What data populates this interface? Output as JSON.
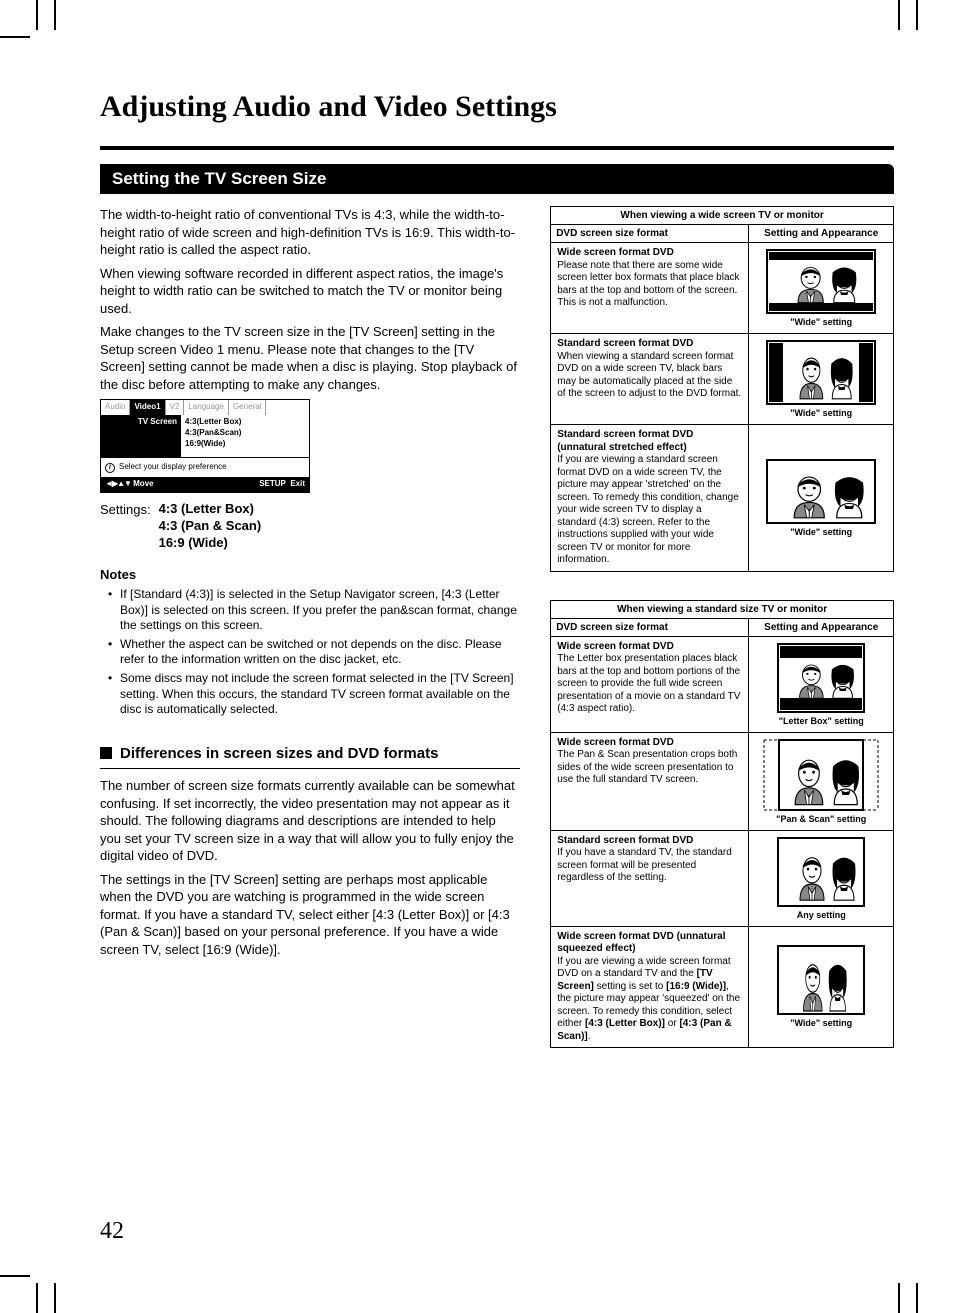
{
  "page_number": "42",
  "title": "Adjusting Audio and Video Settings",
  "section_heading": "Setting the TV Screen Size",
  "intro_p1": "The width-to-height ratio of conventional TVs is 4:3, while the width-to-height ratio of wide screen and high-definition TVs is 16:9. This width-to-height ratio is called the aspect ratio.",
  "intro_p2": "When viewing software recorded in different aspect ratios, the image's height to width ratio can be switched to match the TV or monitor being used.",
  "intro_p3": "Make changes to the TV screen size in the [TV Screen] setting in the Setup screen Video 1 menu. Please note that changes to the [TV Screen] setting cannot be made when a disc is playing. Stop playback of the disc before attempting to make any changes.",
  "menu": {
    "tabs": [
      "Audio",
      "Video1",
      "V2",
      "Language",
      "General"
    ],
    "active_tab_index": 1,
    "setting_label": "TV Screen",
    "options": [
      "4:3(Letter Box)",
      "4:3(Pan&Scan)",
      "16:9(Wide)"
    ],
    "info_text": "Select your display preference",
    "footer_move": "Move",
    "footer_setup": "SETUP",
    "footer_exit": "Exit"
  },
  "settings_label": "Settings:",
  "settings_values": [
    "4:3 (Letter Box)",
    "4:3 (Pan & Scan)",
    "16:9 (Wide)"
  ],
  "notes_heading": "Notes",
  "notes": [
    "If [Standard (4:3)] is selected in the Setup Navigator screen, [4:3 (Letter Box)] is selected on this screen. If you prefer the pan&scan format, change the settings on this screen.",
    "Whether the aspect can be switched or not depends on the disc. Please refer to the information written on the disc jacket, etc.",
    "Some discs may not include the screen format selected in the [TV Screen] setting. When this occurs, the standard TV screen format available on the disc is automatically selected."
  ],
  "subsection_heading": "Differences in screen sizes and DVD formats",
  "sub_p1": "The number of screen size formats currently available can be somewhat confusing. If set incorrectly, the video presentation may not appear as it should. The following diagrams and descriptions are intended to help you set your TV screen size in a way that will allow you to fully enjoy the digital video of DVD.",
  "sub_p2": "The settings in the [TV Screen] setting are perhaps most applicable when the DVD you are watching  is programmed in the wide screen format. If you have a standard TV, select either [4:3 (Letter Box)] or [4:3 (Pan & Scan)] based on your personal preference. If you have a wide screen TV, select [16:9 (Wide)].",
  "table1": {
    "caption": "When viewing a wide screen TV or monitor",
    "head_left": "DVD screen size format",
    "head_right": "Setting and Appearance",
    "rows": [
      {
        "title": "Wide screen format DVD",
        "desc": "Please note that there are some wide screen letter box formats that place black bars at the top and bottom of the screen. This is not a malfunction.",
        "setting": "\"Wide\" setting",
        "mode": "wide-letterbox"
      },
      {
        "title": "Standard screen format DVD",
        "desc": "When viewing a standard screen format DVD on a wide screen TV,  black bars may be automatically placed at the side of the screen to adjust to the DVD format.",
        "setting": "\"Wide\" setting",
        "mode": "pillarbox"
      },
      {
        "title": "Standard screen format DVD (unnatural stretched effect)",
        "desc": "If you are viewing a standard screen format DVD on a wide screen TV, the picture may appear 'stretched' on the screen. To remedy this condition, change your wide screen TV to display a standard (4:3) screen. Refer to the instructions supplied with your wide screen TV or monitor for more information.",
        "setting": "\"Wide\" setting",
        "mode": "stretched"
      }
    ]
  },
  "table2": {
    "caption": "When viewing a standard size TV or monitor",
    "head_left": "DVD screen size format",
    "head_right": "Setting and Appearance",
    "rows": [
      {
        "title": "Wide screen format DVD",
        "desc": "The Letter box presentation places black bars at the top and bottom portions of the screen to provide the full wide screen presentation of a movie on a standard TV (4:3 aspect ratio).",
        "setting": "\"Letter Box\" setting",
        "mode": "letterbox-43"
      },
      {
        "title": "Wide screen format DVD",
        "desc": "The Pan & Scan presentation crops both sides of the wide screen presentation to use the full standard TV screen.",
        "setting": "\"Pan & Scan\" setting",
        "mode": "panscan"
      },
      {
        "title": "Standard screen format DVD",
        "desc": "If you have a standard TV, the standard screen format will be presented regardless of the setting.",
        "setting": "Any setting",
        "mode": "standard-43"
      },
      {
        "title": "Wide screen format DVD (unnatural squeezed effect)",
        "desc_parts": [
          "If you are viewing a wide screen format DVD on a standard TV and the ",
          "[TV Screen]",
          " setting is set to ",
          "[16:9 (Wide)]",
          ", the picture may appear 'squeezed' on the screen. To remedy this condition, select either ",
          "[4:3 (Letter Box)]",
          " or ",
          "[4:3 (Pan & Scan)]",
          "."
        ],
        "setting": "\"Wide\" setting",
        "mode": "squeezed"
      }
    ]
  },
  "svg": {
    "frame_stroke": "#000",
    "fill_dark": "#000",
    "fill_grey": "#888"
  }
}
